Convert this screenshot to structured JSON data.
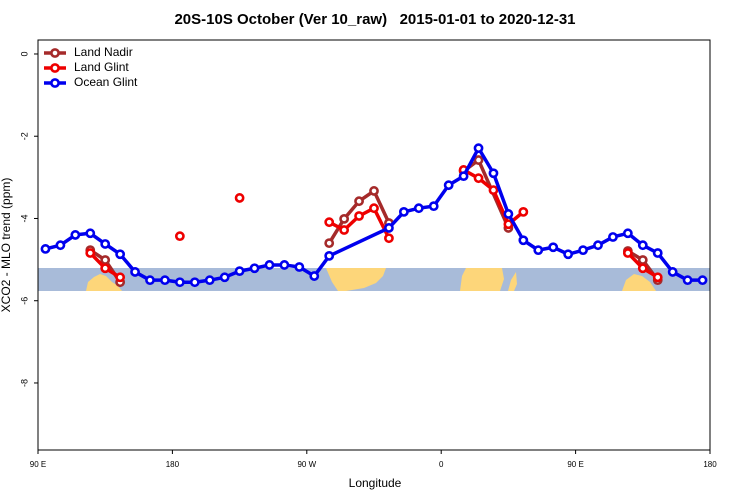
{
  "chart_data": {
    "type": "line",
    "title": "20S-10S October (Ver 10_raw)   2015-01-01 to 2020-12-31",
    "xlabel": "Longitude",
    "ylabel": "XCO2 - MLO trend (ppm)",
    "xlim": [
      90,
      540
    ],
    "ylim": [
      -9.63,
      0.34
    ],
    "xticks": [
      {
        "value": 90,
        "label": "90 E"
      },
      180,
      {
        "value": 270,
        "label": "90 W"
      },
      {
        "value": 360,
        "label": "0"
      },
      {
        "value": 450,
        "label": "90 E"
      },
      {
        "value": 540,
        "label": "180"
      }
    ],
    "yticks": [
      0,
      -2,
      -4,
      -6,
      -8
    ],
    "legend": "top-left",
    "series": [
      {
        "name": "Land Nadir",
        "color": "#a52a2a",
        "x": [
          125,
          135,
          145,
          215,
          285,
          295,
          305,
          315,
          325,
          350,
          375,
          385,
          405,
          445,
          485,
          495,
          505
        ],
        "values": [
          -4.77,
          -5.01,
          -5.55,
          null,
          -4.6,
          -4.01,
          -3.58,
          -3.33,
          -4.11,
          null,
          -2.85,
          -2.58,
          -4.23,
          null,
          -4.79,
          -5.01,
          -5.5
        ]
      },
      {
        "name": "Land Glint",
        "color": "#ee0000",
        "x": [
          125,
          135,
          145,
          165,
          185,
          205,
          225,
          255,
          285,
          295,
          305,
          315,
          325,
          350,
          375,
          385,
          395,
          405,
          415,
          445,
          485,
          495,
          505
        ],
        "values": [
          -4.84,
          -5.21,
          -5.43,
          null,
          -4.43,
          null,
          -3.5,
          null,
          -4.09,
          -4.28,
          -3.94,
          -3.75,
          -4.48,
          null,
          -2.82,
          -3.02,
          -3.31,
          -4.14,
          -3.84,
          null,
          -4.84,
          -5.21,
          -5.43
        ]
      },
      {
        "name": "Ocean Glint",
        "color": "#0000ee",
        "x": [
          95,
          105,
          115,
          125,
          135,
          145,
          155,
          165,
          175,
          185,
          195,
          205,
          215,
          225,
          235,
          245,
          255,
          265,
          275,
          285,
          325,
          335,
          345,
          355,
          365,
          375,
          385,
          395,
          405,
          415,
          425,
          435,
          445,
          455,
          465,
          475,
          485,
          495,
          505,
          515,
          525,
          535
        ],
        "values": [
          -4.74,
          -4.65,
          -4.4,
          -4.36,
          -4.62,
          -4.87,
          -5.3,
          -5.5,
          -5.5,
          -5.55,
          -5.55,
          -5.5,
          -5.43,
          -5.28,
          -5.21,
          -5.13,
          -5.13,
          -5.18,
          -5.4,
          -4.91,
          -4.23,
          -3.84,
          -3.75,
          -3.7,
          -3.19,
          -2.97,
          -2.29,
          -2.9,
          -3.89,
          -4.53,
          -4.77,
          -4.7,
          -4.87,
          -4.77,
          -4.65,
          -4.45,
          -4.36,
          -4.65,
          -4.84,
          -5.3,
          -5.5,
          -5.5
        ]
      }
    ]
  }
}
